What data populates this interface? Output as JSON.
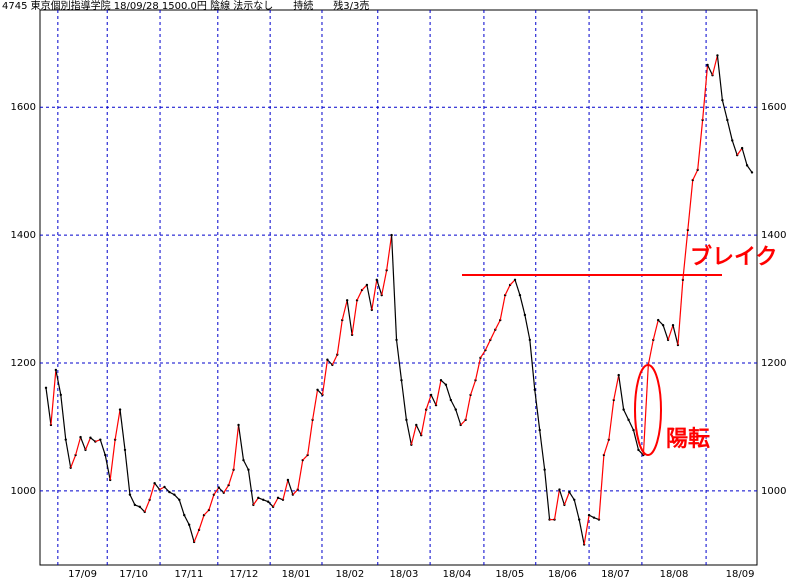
{
  "chart_data": {
    "type": "line",
    "title": "4745 東京個別指導学院 18/09/28 1500.0円 陰線 法示なし　　持続　　残3/3売",
    "values": [
      1161,
      1103,
      1189,
      1150,
      1080,
      1036,
      1056,
      1084,
      1064,
      1083,
      1077,
      1080,
      1056,
      1017,
      1080,
      1127,
      1064,
      994,
      978,
      975,
      967,
      986,
      1012,
      1002,
      1006,
      998,
      994,
      986,
      962,
      947,
      920,
      939,
      962,
      970,
      994,
      1005,
      997,
      1009,
      1033,
      1103,
      1048,
      1033,
      978,
      989,
      986,
      983,
      975,
      989,
      986,
      1017,
      994,
      1002,
      1048,
      1056,
      1111,
      1158,
      1150,
      1205,
      1197,
      1213,
      1267,
      1298,
      1244,
      1298,
      1314,
      1322,
      1283,
      1330,
      1306,
      1345,
      1400,
      1236,
      1173,
      1111,
      1072,
      1103,
      1087,
      1127,
      1150,
      1134,
      1173,
      1166,
      1142,
      1127,
      1103,
      1111,
      1150,
      1173,
      1208,
      1220,
      1236,
      1252,
      1267,
      1306,
      1322,
      1330,
      1306,
      1275,
      1236,
      1158,
      1095,
      1033,
      955,
      955,
      1002,
      978,
      998,
      986,
      955,
      916,
      962,
      958,
      955,
      1056,
      1080,
      1142,
      1181,
      1127,
      1111,
      1095,
      1064,
      1056,
      1197,
      1236,
      1267,
      1259,
      1236,
      1259,
      1228,
      1330,
      1408,
      1486,
      1502,
      1580,
      1666,
      1650,
      1681,
      1611,
      1580,
      1548,
      1525,
      1536,
      1509,
      1498
    ],
    "up_color": "#ff0000",
    "down_color": "#000000",
    "grid_color": "#0000cc",
    "ylim": [
      884,
      1752
    ],
    "yticks": [
      1000,
      1200,
      1400,
      1600
    ],
    "xlim": [
      0,
      143
    ],
    "xticks": [
      {
        "value": 2.4,
        "label": "17/09"
      },
      {
        "value": 12.4,
        "label": "17/10"
      },
      {
        "value": 23.1,
        "label": "17/11"
      },
      {
        "value": 34.8,
        "label": "17/12"
      },
      {
        "value": 45.4,
        "label": "18/01"
      },
      {
        "value": 55.9,
        "label": "18/02"
      },
      {
        "value": 67.2,
        "label": "18/03"
      },
      {
        "value": 77.8,
        "label": "18/04"
      },
      {
        "value": 88.7,
        "label": "18/05"
      },
      {
        "value": 99.2,
        "label": "18/06"
      },
      {
        "value": 110,
        "label": "18/07"
      },
      {
        "value": 120.7,
        "label": "18/08"
      },
      {
        "value": 133.7,
        "label": "18/09"
      }
    ],
    "grid": true,
    "annotations": [
      "ブレイク",
      "陽転"
    ]
  }
}
